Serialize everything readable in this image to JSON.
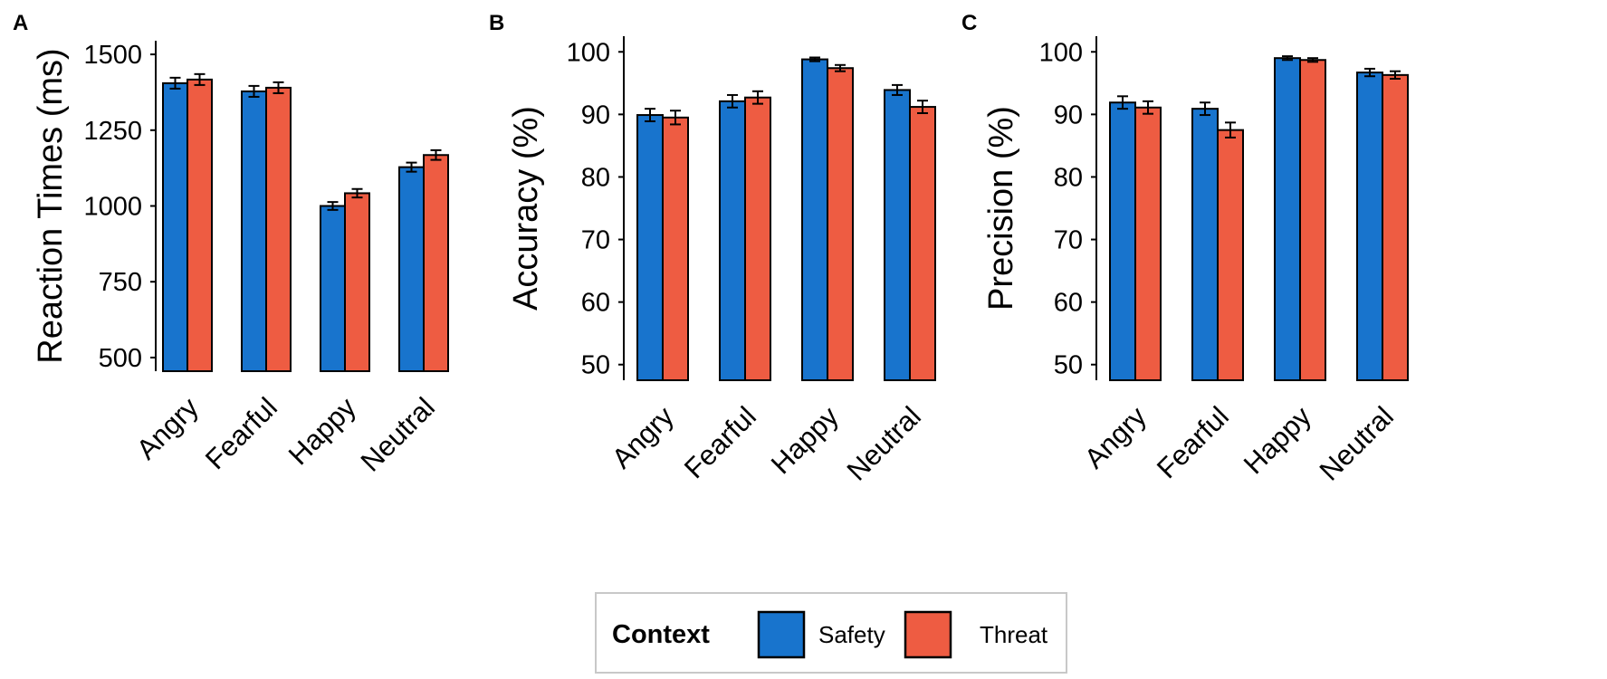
{
  "chart_data": [
    {
      "type": "bar",
      "panel": "A",
      "ylabel": "Reaction Times (ms)",
      "xlabel": "",
      "categories": [
        "Angry",
        "Fearful",
        "Happy",
        "Neutral"
      ],
      "ylim": [
        455,
        1545
      ],
      "yticks": [
        500,
        750,
        1000,
        1250,
        1500
      ],
      "series": [
        {
          "name": "Safety",
          "color": "#1874CD",
          "values": [
            1405,
            1378,
            1000,
            1128
          ],
          "errors": [
            18,
            18,
            13,
            15
          ]
        },
        {
          "name": "Threat",
          "color": "#EE5C42",
          "values": [
            1417,
            1390,
            1042,
            1168
          ],
          "errors": [
            18,
            18,
            14,
            16
          ]
        }
      ]
    },
    {
      "type": "bar",
      "panel": "B",
      "ylabel": "Accuracy (%)",
      "xlabel": "",
      "categories": [
        "Angry",
        "Fearful",
        "Happy",
        "Neutral"
      ],
      "ylim": [
        47.5,
        102.5
      ],
      "yticks": [
        50,
        60,
        70,
        80,
        90,
        100
      ],
      "series": [
        {
          "name": "Safety",
          "color": "#1874CD",
          "values": [
            89.9,
            92.1,
            98.8,
            93.9
          ],
          "errors": [
            1.0,
            1.0,
            0.3,
            0.8
          ]
        },
        {
          "name": "Threat",
          "color": "#EE5C42",
          "values": [
            89.5,
            92.7,
            97.4,
            91.2
          ],
          "errors": [
            1.1,
            1.0,
            0.5,
            1.0
          ]
        }
      ]
    },
    {
      "type": "bar",
      "panel": "C",
      "ylabel": "Precision (%)",
      "xlabel": "",
      "categories": [
        "Angry",
        "Fearful",
        "Happy",
        "Neutral"
      ],
      "ylim": [
        47.5,
        102.5
      ],
      "yticks": [
        50,
        60,
        70,
        80,
        90,
        100
      ],
      "series": [
        {
          "name": "Safety",
          "color": "#1874CD",
          "values": [
            91.9,
            90.9,
            99.0,
            96.7
          ],
          "errors": [
            1.0,
            1.0,
            0.3,
            0.6
          ]
        },
        {
          "name": "Threat",
          "color": "#EE5C42",
          "values": [
            91.1,
            87.5,
            98.7,
            96.3
          ],
          "errors": [
            1.0,
            1.2,
            0.3,
            0.6
          ]
        }
      ]
    }
  ],
  "legend": {
    "title": "Context",
    "items": [
      {
        "label": "Safety",
        "color": "#1874CD"
      },
      {
        "label": "Threat",
        "color": "#EE5C42"
      }
    ]
  }
}
